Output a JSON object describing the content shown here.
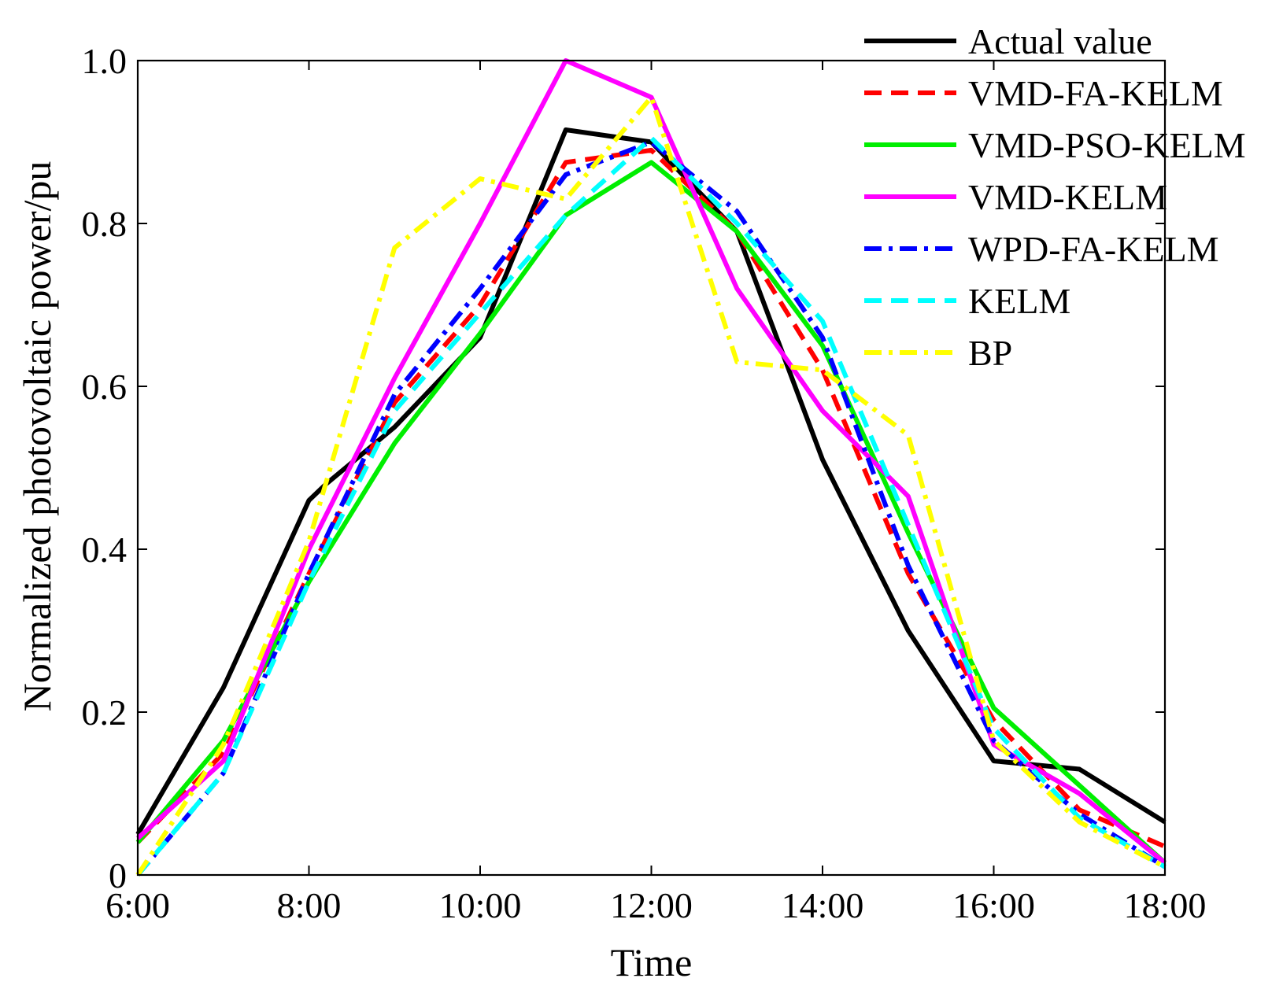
{
  "chart_data": {
    "type": "line",
    "title": "",
    "xlabel": "Time",
    "ylabel": "Normalized photovoltaic power/pu",
    "x": [
      6,
      7,
      8,
      9,
      10,
      11,
      12,
      13,
      14,
      15,
      16,
      17,
      18
    ],
    "xlim": [
      6,
      18
    ],
    "ylim": [
      0,
      1.0
    ],
    "grid": false,
    "legend_position": "top-right",
    "xticks": [
      {
        "value": 6,
        "label": "6:00"
      },
      {
        "value": 8,
        "label": "8:00"
      },
      {
        "value": 10,
        "label": "10:00"
      },
      {
        "value": 12,
        "label": "12:00"
      },
      {
        "value": 14,
        "label": "14:00"
      },
      {
        "value": 16,
        "label": "16:00"
      },
      {
        "value": 18,
        "label": "18:00"
      }
    ],
    "yticks": [
      {
        "value": 0,
        "label": "0"
      },
      {
        "value": 0.2,
        "label": "0.2"
      },
      {
        "value": 0.4,
        "label": "0.4"
      },
      {
        "value": 0.6,
        "label": "0.6"
      },
      {
        "value": 0.8,
        "label": "0.8"
      },
      {
        "value": 1.0,
        "label": "1.0"
      }
    ],
    "series": [
      {
        "name": "Actual value",
        "color": "#000000",
        "style": "solid",
        "points": [
          [
            6,
            0.05
          ],
          [
            7,
            0.23
          ],
          [
            8,
            0.46
          ],
          [
            8.2,
            0.48
          ],
          [
            9,
            0.55
          ],
          [
            10,
            0.66
          ],
          [
            11,
            0.915
          ],
          [
            12,
            0.9
          ],
          [
            13,
            0.79
          ],
          [
            14,
            0.51
          ],
          [
            15,
            0.3
          ],
          [
            16,
            0.14
          ],
          [
            17,
            0.13
          ],
          [
            18,
            0.065
          ]
        ]
      },
      {
        "name": "VMD-FA-KELM",
        "color": "#ff0000",
        "style": "dashed",
        "points": [
          [
            6,
            0.04
          ],
          [
            7,
            0.15
          ],
          [
            8,
            0.37
          ],
          [
            9,
            0.58
          ],
          [
            10,
            0.7
          ],
          [
            11,
            0.875
          ],
          [
            12,
            0.89
          ],
          [
            13,
            0.79
          ],
          [
            14,
            0.62
          ],
          [
            15,
            0.37
          ],
          [
            16,
            0.19
          ],
          [
            17,
            0.08
          ],
          [
            18,
            0.035
          ]
        ]
      },
      {
        "name": "VMD-PSO-KELM",
        "color": "#00ee00",
        "style": "solid",
        "points": [
          [
            6,
            0.04
          ],
          [
            7,
            0.165
          ],
          [
            8,
            0.36
          ],
          [
            9,
            0.53
          ],
          [
            10,
            0.665
          ],
          [
            11,
            0.81
          ],
          [
            12,
            0.875
          ],
          [
            13,
            0.79
          ],
          [
            14,
            0.65
          ],
          [
            15,
            0.42
          ],
          [
            16,
            0.205
          ],
          [
            17,
            0.11
          ],
          [
            18,
            0.015
          ]
        ]
      },
      {
        "name": "VMD-KELM",
        "color": "#ff00ff",
        "style": "solid",
        "points": [
          [
            6,
            0.045
          ],
          [
            7,
            0.14
          ],
          [
            8,
            0.4
          ],
          [
            9,
            0.61
          ],
          [
            10,
            0.8
          ],
          [
            11,
            1.0
          ],
          [
            12,
            0.955
          ],
          [
            13,
            0.72
          ],
          [
            14,
            0.57
          ],
          [
            15,
            0.465
          ],
          [
            16,
            0.16
          ],
          [
            17,
            0.1
          ],
          [
            18,
            0.015
          ]
        ]
      },
      {
        "name": "WPD-FA-KELM",
        "color": "#0000ff",
        "style": "dashdot",
        "points": [
          [
            6,
            0.0
          ],
          [
            7,
            0.125
          ],
          [
            8,
            0.37
          ],
          [
            9,
            0.59
          ],
          [
            10,
            0.72
          ],
          [
            11,
            0.86
          ],
          [
            12,
            0.9
          ],
          [
            13,
            0.815
          ],
          [
            14,
            0.66
          ],
          [
            15,
            0.38
          ],
          [
            16,
            0.165
          ],
          [
            17,
            0.075
          ],
          [
            18,
            0.01
          ]
        ]
      },
      {
        "name": "KELM",
        "color": "#00ffff",
        "style": "dashed",
        "points": [
          [
            6,
            0.0
          ],
          [
            7,
            0.125
          ],
          [
            8,
            0.36
          ],
          [
            9,
            0.57
          ],
          [
            10,
            0.69
          ],
          [
            11,
            0.81
          ],
          [
            12,
            0.905
          ],
          [
            13,
            0.8
          ],
          [
            14,
            0.68
          ],
          [
            15,
            0.43
          ],
          [
            16,
            0.18
          ],
          [
            17,
            0.07
          ],
          [
            18,
            0.01
          ]
        ]
      },
      {
        "name": "BP",
        "color": "#ffff00",
        "style": "dashdot",
        "points": [
          [
            6,
            0.0
          ],
          [
            7,
            0.16
          ],
          [
            8,
            0.41
          ],
          [
            9,
            0.77
          ],
          [
            10,
            0.855
          ],
          [
            11,
            0.83
          ],
          [
            12,
            0.955
          ],
          [
            13,
            0.63
          ],
          [
            14,
            0.62
          ],
          [
            15,
            0.54
          ],
          [
            16,
            0.165
          ],
          [
            17,
            0.065
          ],
          [
            18,
            0.01
          ]
        ]
      }
    ]
  }
}
